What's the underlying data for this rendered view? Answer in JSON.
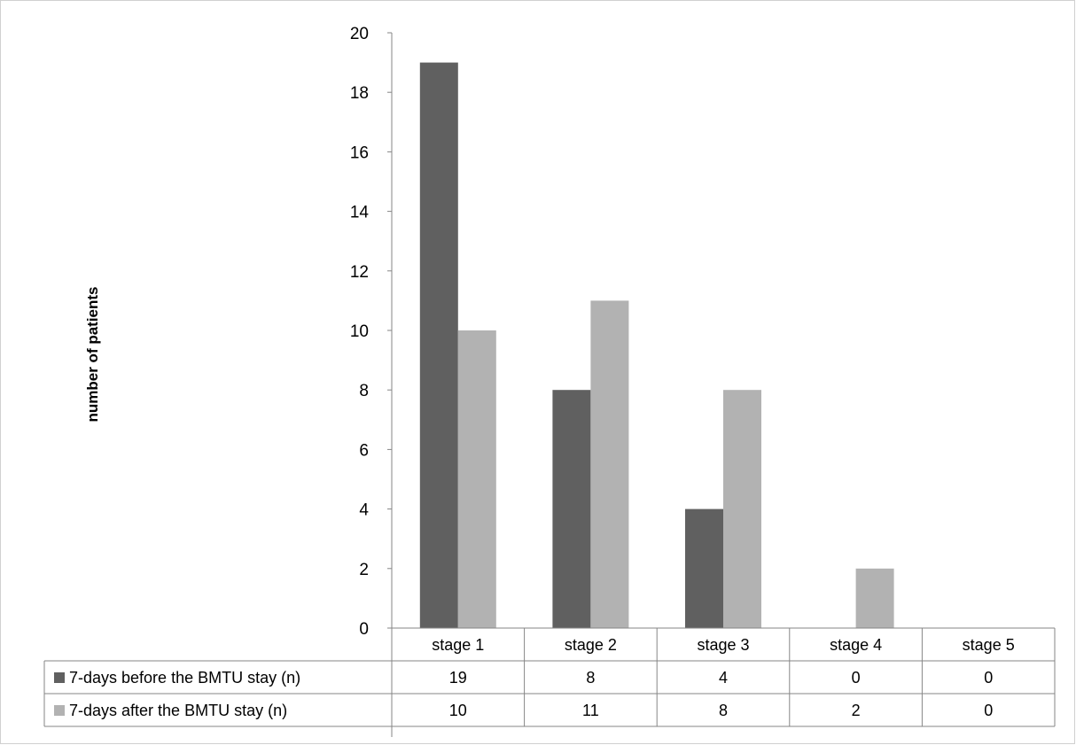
{
  "chart_data": {
    "type": "bar",
    "title": "",
    "xlabel": "",
    "ylabel": "number of patients",
    "ylim": [
      0,
      20
    ],
    "yticks": [
      0,
      2,
      4,
      6,
      8,
      10,
      12,
      14,
      16,
      18,
      20
    ],
    "categories": [
      "stage 1",
      "stage 2",
      "stage 3",
      "stage 4",
      "stage 5"
    ],
    "series": [
      {
        "name": "7-days before the BMTU stay (n)",
        "color": "#606060",
        "values": [
          19,
          8,
          4,
          0,
          0
        ]
      },
      {
        "name": "7-days after the BMTU stay (n)",
        "color": "#b2b2b2",
        "values": [
          10,
          11,
          8,
          2,
          0
        ]
      }
    ],
    "data_table": true,
    "grid": false
  }
}
